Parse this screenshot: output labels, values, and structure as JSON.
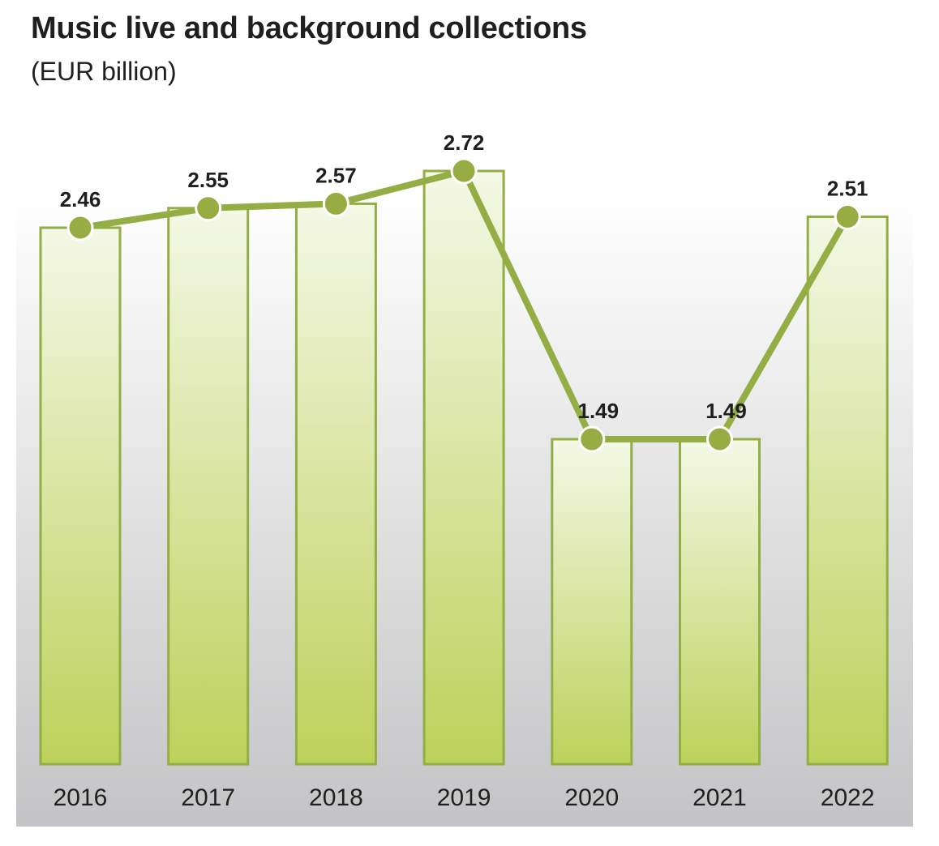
{
  "chart_data": {
    "type": "bar",
    "title": "Music live and background collections",
    "subtitle": "(EUR billion)",
    "categories": [
      "2016",
      "2017",
      "2018",
      "2019",
      "2020",
      "2021",
      "2022"
    ],
    "values": [
      2.46,
      2.55,
      2.57,
      2.72,
      1.49,
      1.49,
      2.51
    ],
    "data_labels": [
      "2.46",
      "2.55",
      "2.57",
      "2.72",
      "1.49",
      "1.49",
      "2.51"
    ],
    "overlay": "line with markers connecting bar tops",
    "ylim": [
      0,
      2.72
    ],
    "grid": false,
    "legend": "none",
    "colors": {
      "bar_fill_top": "#f4f8e6",
      "bar_fill_bottom": "#bed15a",
      "bar_stroke": "#93ae45",
      "line": "#93ae45",
      "marker": "#97ad44",
      "marker_stroke": "#ffffff",
      "plot_bg_top": "#ffffff",
      "plot_bg_bottom": "#c4c4c6"
    }
  }
}
